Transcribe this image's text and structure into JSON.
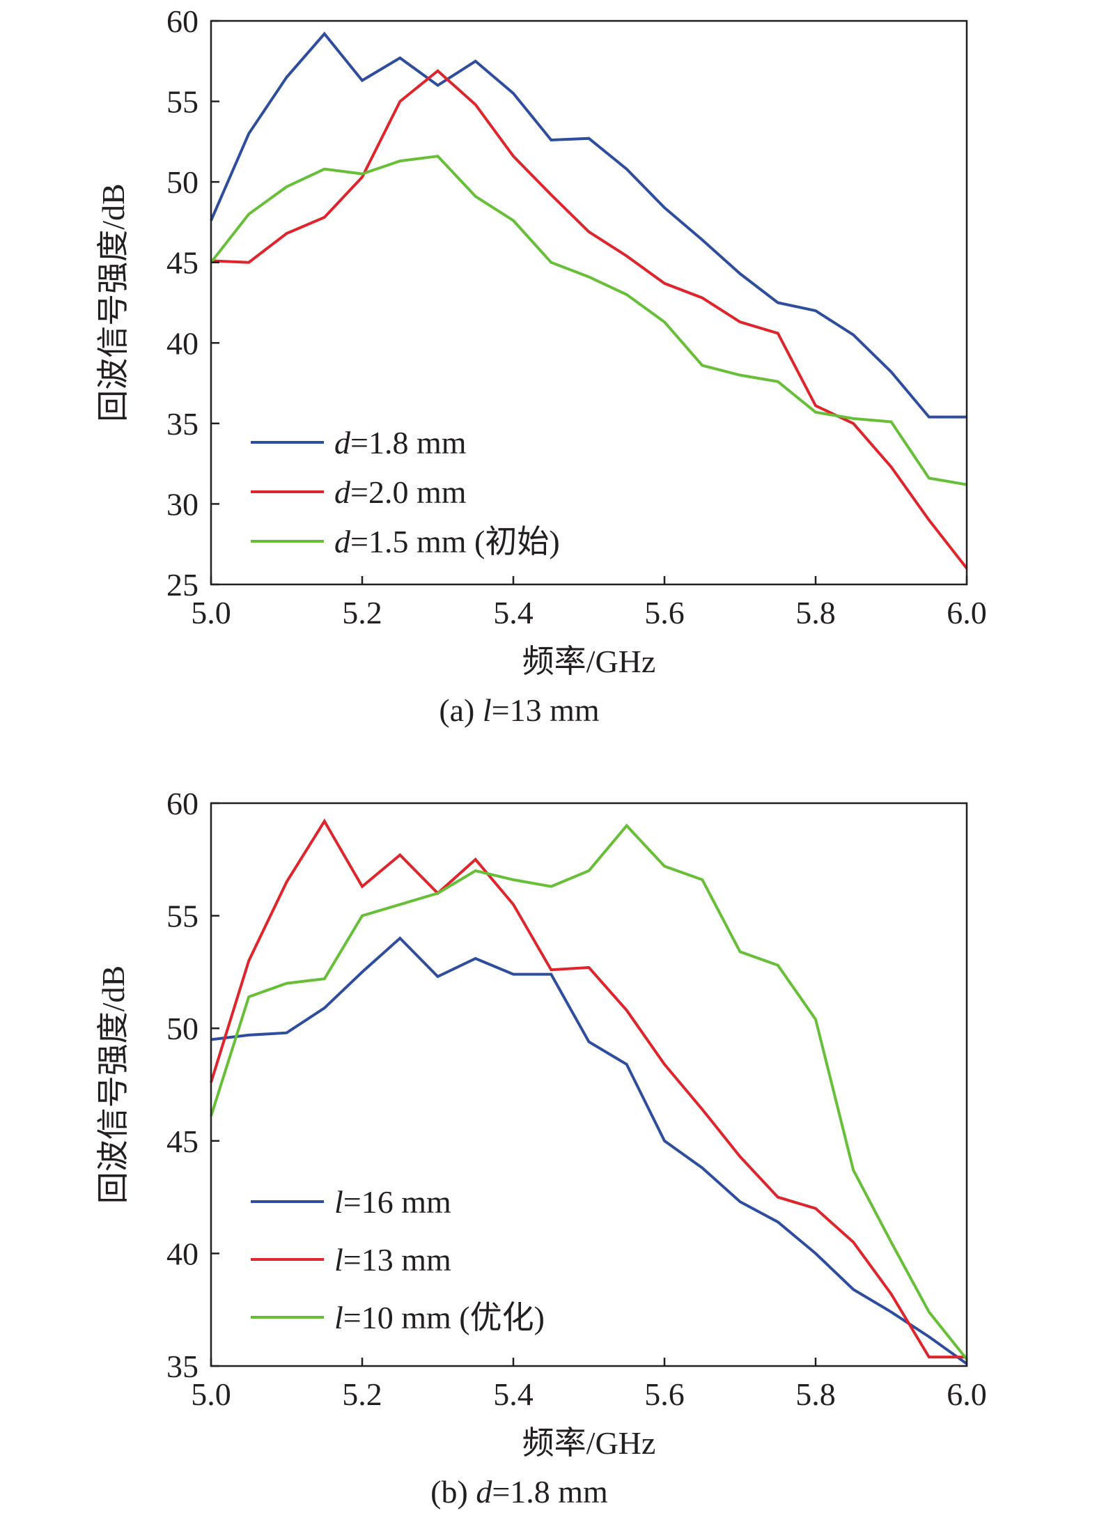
{
  "chart_data": [
    {
      "type": "line",
      "caption": "(a) l=13 mm",
      "caption_parts": [
        "(a) ",
        "l",
        "=13 mm"
      ],
      "xlabel": "频率/GHz",
      "ylabel": "回波信号强度/dB",
      "xlim": [
        5.0,
        6.0
      ],
      "ylim": [
        25,
        60
      ],
      "xticks": [
        "5.0",
        "5.2",
        "5.4",
        "5.6",
        "5.8",
        "6.0"
      ],
      "yticks": [
        "25",
        "30",
        "35",
        "40",
        "45",
        "50",
        "55",
        "60"
      ],
      "legend_position": "bottom-left",
      "x": [
        5.0,
        5.05,
        5.1,
        5.15,
        5.2,
        5.25,
        5.3,
        5.35,
        5.4,
        5.45,
        5.5,
        5.55,
        5.6,
        5.65,
        5.7,
        5.75,
        5.8,
        5.85,
        5.9,
        5.95,
        6.0
      ],
      "series": [
        {
          "name": "d=1.8 mm",
          "name_parts": [
            "d",
            "=1.8 mm"
          ],
          "color": "#2e4d9e",
          "values": [
            47.6,
            53.0,
            56.5,
            59.2,
            56.3,
            57.7,
            56.0,
            57.5,
            55.5,
            52.6,
            52.7,
            50.8,
            48.4,
            46.4,
            44.3,
            42.5,
            42.0,
            40.5,
            38.2,
            35.4,
            35.4
          ]
        },
        {
          "name": "d=2.0 mm",
          "name_parts": [
            "d",
            "=2.0 mm"
          ],
          "color": "#e0242c",
          "values": [
            45.1,
            45.0,
            46.8,
            47.8,
            50.3,
            55.0,
            56.9,
            54.8,
            51.6,
            49.2,
            46.9,
            45.4,
            43.7,
            42.8,
            41.3,
            40.6,
            36.1,
            35.0,
            32.3,
            29.0,
            26.0
          ]
        },
        {
          "name": "d=1.5 mm (初始)",
          "name_parts": [
            "d",
            "=1.5 mm (初始)"
          ],
          "color": "#66bf37",
          "values": [
            45.0,
            48.0,
            49.7,
            50.8,
            50.5,
            51.3,
            51.6,
            49.1,
            47.6,
            45.0,
            44.1,
            43.0,
            41.3,
            38.6,
            38.0,
            37.6,
            35.7,
            35.3,
            35.1,
            31.6,
            31.2
          ]
        }
      ]
    },
    {
      "type": "line",
      "caption": "(b) d=1.8 mm",
      "caption_parts": [
        "(b) ",
        "d",
        "=1.8 mm"
      ],
      "xlabel": "频率/GHz",
      "ylabel": "回波信号强度/dB",
      "xlim": [
        5.0,
        6.0
      ],
      "ylim": [
        35,
        60
      ],
      "xticks": [
        "5.0",
        "5.2",
        "5.4",
        "5.6",
        "5.8",
        "6.0"
      ],
      "yticks": [
        "35",
        "40",
        "45",
        "50",
        "55",
        "60"
      ],
      "legend_position": "bottom-left",
      "x": [
        5.0,
        5.05,
        5.1,
        5.15,
        5.2,
        5.25,
        5.3,
        5.35,
        5.4,
        5.45,
        5.5,
        5.55,
        5.6,
        5.65,
        5.7,
        5.75,
        5.8,
        5.85,
        5.9,
        5.95,
        6.0
      ],
      "series": [
        {
          "name": "l=16 mm",
          "name_parts": [
            "l",
            "=16 mm"
          ],
          "color": "#2e4d9e",
          "values": [
            49.5,
            49.7,
            49.8,
            50.9,
            52.5,
            54.0,
            52.3,
            53.1,
            52.4,
            52.4,
            49.4,
            48.4,
            45.0,
            43.8,
            42.3,
            41.4,
            40.0,
            38.4,
            37.4,
            36.3,
            35.1
          ]
        },
        {
          "name": "l=13 mm",
          "name_parts": [
            "l",
            "=13 mm"
          ],
          "color": "#e0242c",
          "values": [
            47.6,
            53.0,
            56.5,
            59.2,
            56.3,
            57.7,
            56.0,
            57.5,
            55.5,
            52.6,
            52.7,
            50.8,
            48.4,
            46.4,
            44.3,
            42.5,
            42.0,
            40.5,
            38.2,
            35.4,
            35.4
          ]
        },
        {
          "name": "l=10 mm (优化)",
          "name_parts": [
            "l",
            "=10 mm (优化)"
          ],
          "color": "#66bf37",
          "values": [
            46.1,
            51.4,
            52.0,
            52.2,
            55.0,
            55.5,
            56.0,
            57.0,
            56.6,
            56.3,
            57.0,
            59.0,
            57.2,
            56.6,
            53.4,
            52.8,
            50.4,
            43.7,
            40.5,
            37.4,
            35.3
          ]
        }
      ]
    }
  ]
}
